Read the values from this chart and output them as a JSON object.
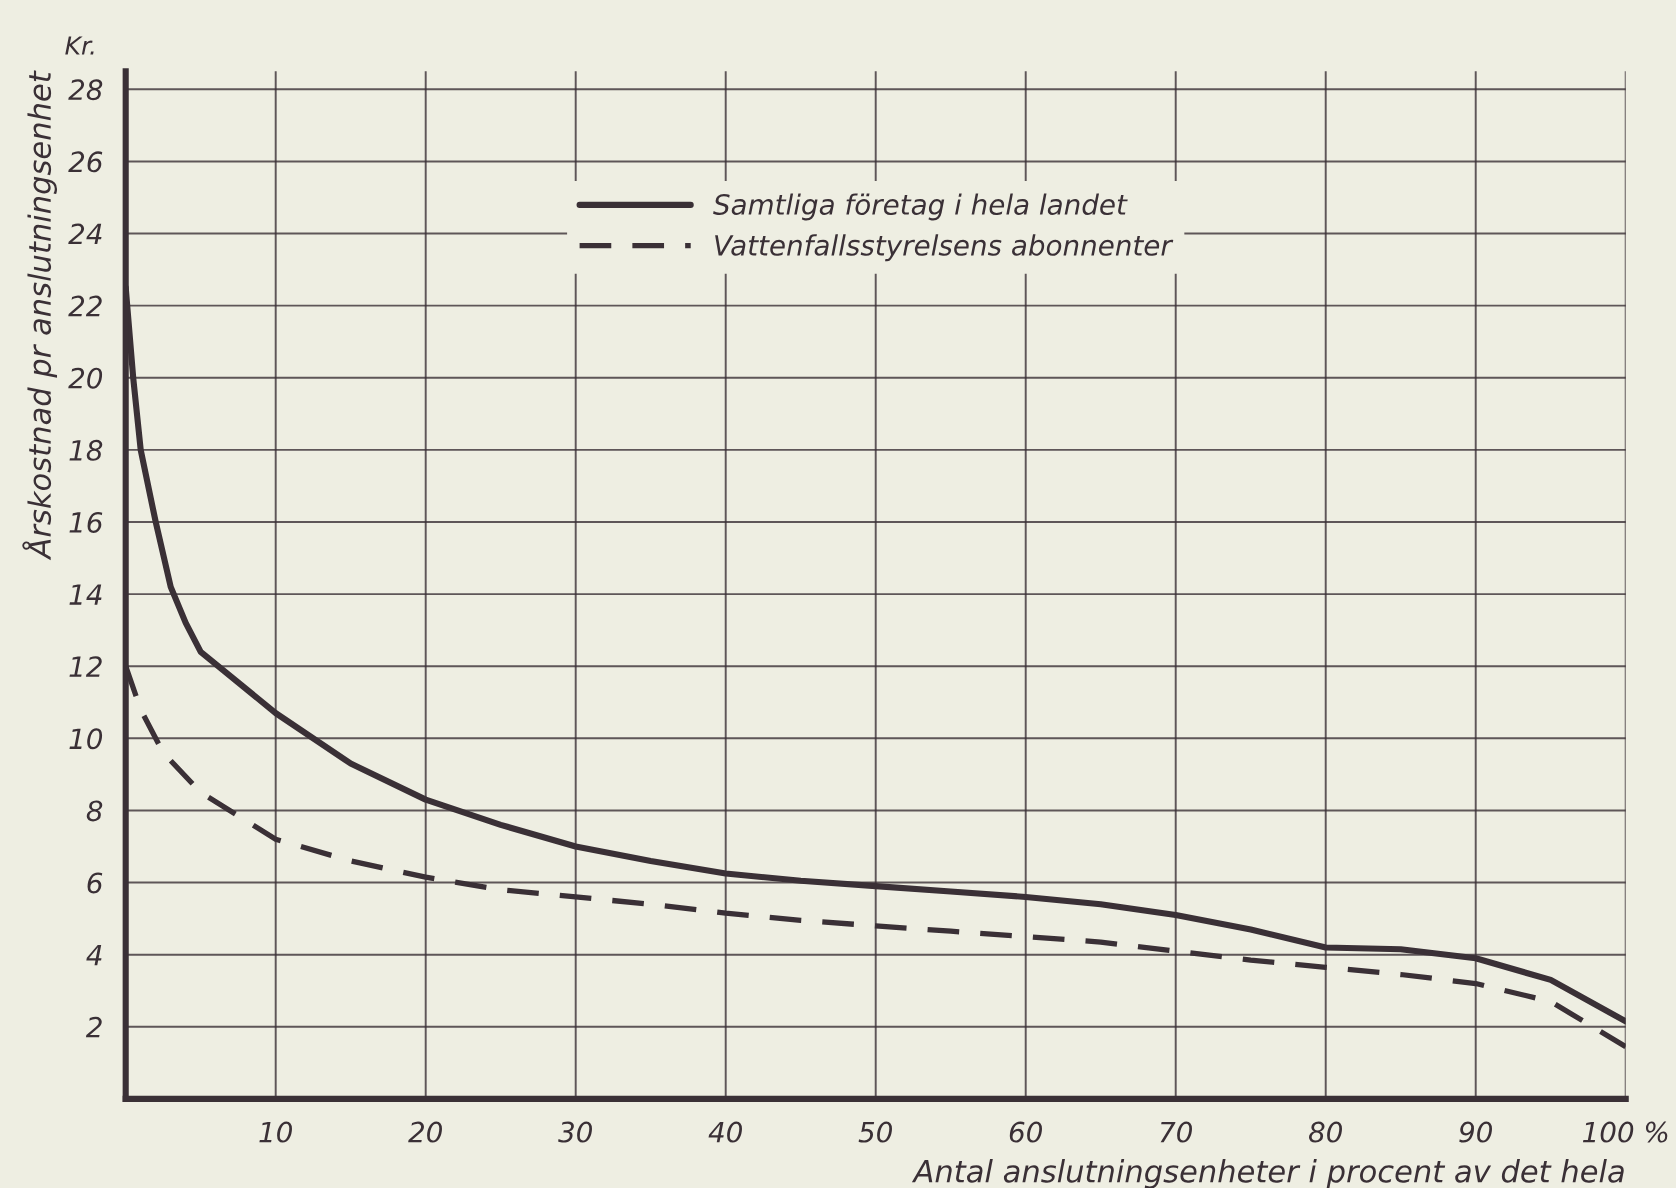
{
  "chart_data": {
    "type": "line",
    "xlabel": "Antal anslutningsenheter i procent av det hela",
    "ylabel": "Årskostnad pr anslutningsenhet",
    "annotations": [
      "Kr."
    ],
    "series": [
      {
        "name": "Samtliga företag i hela landet",
        "color": "#3a3036",
        "line_style": "solid",
        "x": [
          0,
          0.5,
          1,
          2,
          3,
          4,
          5,
          10,
          15,
          20,
          25,
          30,
          35,
          40,
          45,
          50,
          55,
          60,
          65,
          70,
          75,
          80,
          85,
          90,
          95,
          100
        ],
        "values": [
          22.5,
          20,
          18,
          16,
          14.2,
          13.2,
          12.4,
          10.7,
          9.3,
          8.3,
          7.6,
          7.0,
          6.6,
          6.25,
          6.05,
          5.9,
          5.75,
          5.6,
          5.4,
          5.1,
          4.7,
          4.2,
          4.15,
          3.9,
          3.3,
          2.15
        ]
      },
      {
        "name": "Vattenfallsstyrelsens abonnenter",
        "color": "#3a3036",
        "line_style": "dashed",
        "x": [
          0,
          1,
          2.5,
          5,
          10,
          15,
          20,
          25,
          30,
          35,
          40,
          45,
          50,
          55,
          60,
          65,
          70,
          75,
          80,
          85,
          90,
          95,
          100
        ],
        "values": [
          12,
          10.8,
          9.6,
          8.5,
          7.2,
          6.6,
          6.15,
          5.8,
          5.6,
          5.4,
          5.15,
          4.95,
          4.8,
          4.65,
          4.5,
          4.35,
          4.1,
          3.85,
          3.65,
          3.45,
          3.2,
          2.7,
          1.45
        ]
      }
    ],
    "xlim": [
      0,
      100
    ],
    "ylim": [
      0,
      28.5
    ],
    "xticks": [
      10,
      20,
      30,
      40,
      50,
      60,
      70,
      80,
      90,
      {
        "value": 100,
        "label": "100 %"
      }
    ],
    "yticks": [
      2,
      4,
      6,
      8,
      10,
      12,
      14,
      16,
      18,
      20,
      22,
      24,
      26,
      28
    ],
    "grid": true,
    "legend": "top"
  }
}
